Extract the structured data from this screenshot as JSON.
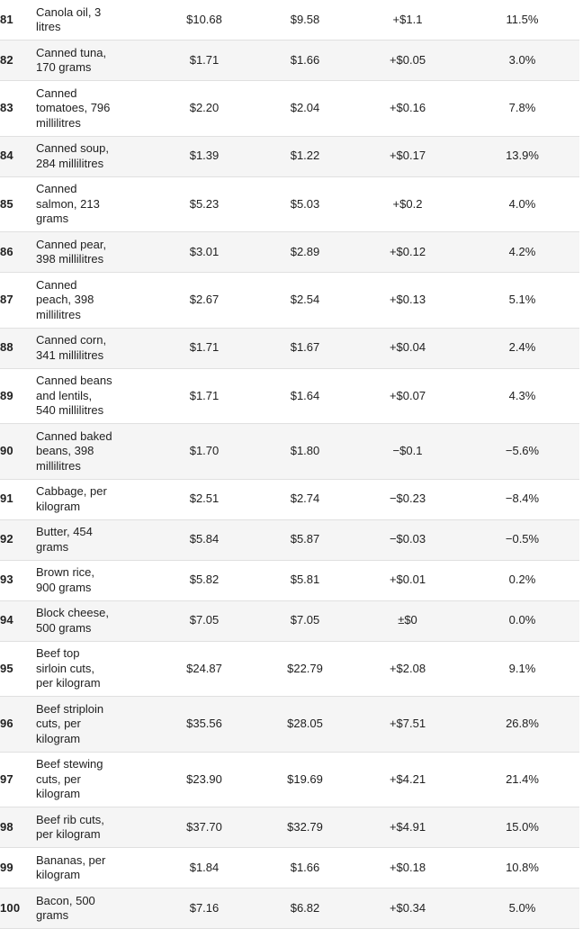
{
  "colors": {
    "background": "#ffffff",
    "stripe": "#f5f5f5",
    "border": "#e0e0e0",
    "text": "#212121"
  },
  "table": {
    "rows": [
      {
        "num": "81",
        "item": "Canola oil, 3\nlitres",
        "new_price": "$10.68",
        "old_price": "$9.58",
        "change": "+$1.1",
        "percent": "11.5%"
      },
      {
        "num": "82",
        "item": "Canned tuna,\n170 grams",
        "new_price": "$1.71",
        "old_price": "$1.66",
        "change": "+$0.05",
        "percent": "3.0%"
      },
      {
        "num": "83",
        "item": "Canned\ntomatoes, 796\nmillilitres",
        "new_price": "$2.20",
        "old_price": "$2.04",
        "change": "+$0.16",
        "percent": "7.8%"
      },
      {
        "num": "84",
        "item": "Canned soup,\n284 millilitres",
        "new_price": "$1.39",
        "old_price": "$1.22",
        "change": "+$0.17",
        "percent": "13.9%"
      },
      {
        "num": "85",
        "item": "Canned\nsalmon, 213\ngrams",
        "new_price": "$5.23",
        "old_price": "$5.03",
        "change": "+$0.2",
        "percent": "4.0%"
      },
      {
        "num": "86",
        "item": "Canned pear,\n398 millilitres",
        "new_price": "$3.01",
        "old_price": "$2.89",
        "change": "+$0.12",
        "percent": "4.2%"
      },
      {
        "num": "87",
        "item": "Canned\npeach, 398\nmillilitres",
        "new_price": "$2.67",
        "old_price": "$2.54",
        "change": "+$0.13",
        "percent": "5.1%"
      },
      {
        "num": "88",
        "item": "Canned corn,\n341 millilitres",
        "new_price": "$1.71",
        "old_price": "$1.67",
        "change": "+$0.04",
        "percent": "2.4%"
      },
      {
        "num": "89",
        "item": "Canned beans\nand lentils,\n540 millilitres",
        "new_price": "$1.71",
        "old_price": "$1.64",
        "change": "+$0.07",
        "percent": "4.3%"
      },
      {
        "num": "90",
        "item": "Canned baked\nbeans, 398\nmillilitres",
        "new_price": "$1.70",
        "old_price": "$1.80",
        "change": "−$0.1",
        "percent": "−5.6%"
      },
      {
        "num": "91",
        "item": "Cabbage, per\nkilogram",
        "new_price": "$2.51",
        "old_price": "$2.74",
        "change": "−$0.23",
        "percent": "−8.4%"
      },
      {
        "num": "92",
        "item": "Butter, 454\ngrams",
        "new_price": "$5.84",
        "old_price": "$5.87",
        "change": "−$0.03",
        "percent": "−0.5%"
      },
      {
        "num": "93",
        "item": "Brown rice,\n900 grams",
        "new_price": "$5.82",
        "old_price": "$5.81",
        "change": "+$0.01",
        "percent": "0.2%"
      },
      {
        "num": "94",
        "item": "Block cheese,\n500 grams",
        "new_price": "$7.05",
        "old_price": "$7.05",
        "change": "±$0",
        "percent": "0.0%"
      },
      {
        "num": "95",
        "item": "Beef top\nsirloin cuts,\nper kilogram",
        "new_price": "$24.87",
        "old_price": "$22.79",
        "change": "+$2.08",
        "percent": "9.1%"
      },
      {
        "num": "96",
        "item": "Beef striploin\ncuts, per\nkilogram",
        "new_price": "$35.56",
        "old_price": "$28.05",
        "change": "+$7.51",
        "percent": "26.8%"
      },
      {
        "num": "97",
        "item": "Beef stewing\ncuts, per\nkilogram",
        "new_price": "$23.90",
        "old_price": "$19.69",
        "change": "+$4.21",
        "percent": "21.4%"
      },
      {
        "num": "98",
        "item": "Beef rib cuts,\nper kilogram",
        "new_price": "$37.70",
        "old_price": "$32.79",
        "change": "+$4.91",
        "percent": "15.0%"
      },
      {
        "num": "99",
        "item": "Bananas, per\nkilogram",
        "new_price": "$1.84",
        "old_price": "$1.66",
        "change": "+$0.18",
        "percent": "10.8%"
      },
      {
        "num": "100",
        "item": "Bacon, 500\ngrams",
        "new_price": "$7.16",
        "old_price": "$6.82",
        "change": "+$0.34",
        "percent": "5.0%"
      }
    ]
  }
}
